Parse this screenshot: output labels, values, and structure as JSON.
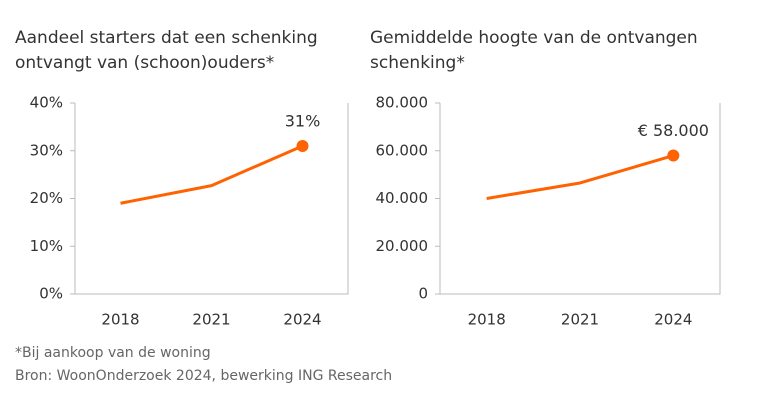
{
  "chart_data": [
    {
      "type": "line",
      "title": "Aandeel starters dat een schenking ontvangt van (schoon)ouders*",
      "categories": [
        "2018",
        "2021",
        "2024"
      ],
      "series": [
        {
          "color": "#ff6200",
          "values": [
            19,
            22.7,
            31
          ],
          "value_labels": [
            null,
            null,
            "31%"
          ]
        }
      ],
      "ylim": [
        0,
        40
      ],
      "yticks": [
        {
          "value": 0,
          "label": "0%"
        },
        {
          "value": 10,
          "label": "10%"
        },
        {
          "value": 20,
          "label": "20%"
        },
        {
          "value": 30,
          "label": "30%"
        },
        {
          "value": 40,
          "label": "40%"
        }
      ]
    },
    {
      "type": "line",
      "title": "Gemiddelde hoogte van de ontvangen schenking*",
      "categories": [
        "2018",
        "2021",
        "2024"
      ],
      "series": [
        {
          "color": "#ff6200",
          "values": [
            40000,
            46500,
            58000
          ],
          "value_labels": [
            null,
            null,
            "€ 58.000"
          ]
        }
      ],
      "ylim": [
        0,
        80000
      ],
      "yticks": [
        0,
        {
          "value": 20000,
          "label": "20.000"
        },
        {
          "value": 40000,
          "label": "40.000"
        },
        {
          "value": 60000,
          "label": "60.000"
        },
        {
          "value": 80000,
          "label": "80.000"
        }
      ]
    }
  ],
  "footnote": "*Bij aankoop van de woning",
  "source": "Bron: WoonOnderzoek 2024, bewerking ING Research"
}
